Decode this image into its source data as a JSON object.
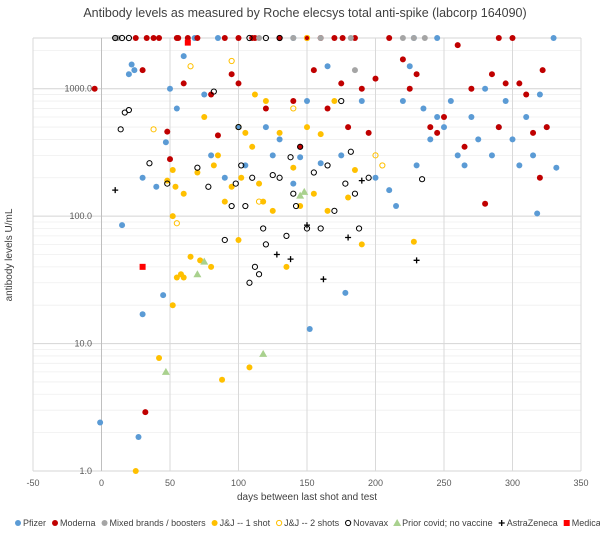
{
  "chart_data": {
    "type": "scatter",
    "title": "Antibody levels as measured by Roche elecsys total anti-spike (labcorp 164090)",
    "xlabel": "days between last shot and test",
    "ylabel": "antibody levels U/mL",
    "xlim": [
      -50,
      350
    ],
    "ylim": [
      1,
      2500
    ],
    "y_scale": "log",
    "grid": true,
    "legend_position": "bottom",
    "x_ticks": [
      "-50",
      "0",
      "50",
      "100",
      "150",
      "200",
      "250",
      "300",
      "350"
    ],
    "y_ticks": [
      {
        "label": "1.0",
        "value": 1
      },
      {
        "label": "10.0",
        "value": 10
      },
      {
        "label": "100.0",
        "value": 100
      },
      {
        "label": "1000.0",
        "value": 1000
      }
    ],
    "series": [
      {
        "name": "Pfizer",
        "marker": "circle",
        "color": "#5b9bd5",
        "points": [
          [
            -1,
            2.4
          ],
          [
            27,
            1.85
          ],
          [
            30,
            17
          ],
          [
            45,
            24
          ],
          [
            15,
            85
          ],
          [
            20,
            1300
          ],
          [
            22,
            1550
          ],
          [
            24,
            1400
          ],
          [
            30,
            200
          ],
          [
            40,
            170
          ],
          [
            47,
            380
          ],
          [
            50,
            1000
          ],
          [
            55,
            700
          ],
          [
            60,
            1800
          ],
          [
            75,
            900
          ],
          [
            80,
            300
          ],
          [
            90,
            200
          ],
          [
            100,
            500
          ],
          [
            105,
            250
          ],
          [
            120,
            500
          ],
          [
            125,
            300
          ],
          [
            130,
            400
          ],
          [
            140,
            180
          ],
          [
            145,
            290
          ],
          [
            150,
            800
          ],
          [
            152,
            13
          ],
          [
            160,
            260
          ],
          [
            165,
            1500
          ],
          [
            175,
            300
          ],
          [
            178,
            25
          ],
          [
            190,
            800
          ],
          [
            200,
            200
          ],
          [
            210,
            160
          ],
          [
            215,
            120
          ],
          [
            220,
            800
          ],
          [
            225,
            1500
          ],
          [
            230,
            250
          ],
          [
            235,
            700
          ],
          [
            240,
            400
          ],
          [
            245,
            600
          ],
          [
            250,
            500
          ],
          [
            255,
            800
          ],
          [
            260,
            300
          ],
          [
            265,
            250
          ],
          [
            270,
            600
          ],
          [
            275,
            400
          ],
          [
            280,
            1000
          ],
          [
            285,
            300
          ],
          [
            290,
            500
          ],
          [
            295,
            800
          ],
          [
            300,
            400
          ],
          [
            305,
            250
          ],
          [
            310,
            600
          ],
          [
            315,
            300
          ],
          [
            318,
            105
          ],
          [
            320,
            900
          ],
          [
            325,
            500
          ],
          [
            330,
            2500
          ],
          [
            332,
            240
          ],
          [
            68,
            2500
          ],
          [
            140,
            2500
          ],
          [
            85,
            2500
          ],
          [
            245,
            2500
          ],
          [
            228,
            2500
          ]
        ]
      },
      {
        "name": "Moderna",
        "marker": "circle",
        "color": "#c00000",
        "points": [
          [
            -5,
            1000
          ],
          [
            30,
            1400
          ],
          [
            32,
            2.9
          ],
          [
            48,
            460
          ],
          [
            50,
            280
          ],
          [
            55,
            2500
          ],
          [
            60,
            1100
          ],
          [
            70,
            2500
          ],
          [
            80,
            900
          ],
          [
            85,
            430
          ],
          [
            90,
            2500
          ],
          [
            95,
            1300
          ],
          [
            100,
            1100
          ],
          [
            110,
            2500
          ],
          [
            120,
            700
          ],
          [
            130,
            2500
          ],
          [
            140,
            800
          ],
          [
            145,
            350
          ],
          [
            150,
            2500
          ],
          [
            155,
            1400
          ],
          [
            160,
            2500
          ],
          [
            165,
            700
          ],
          [
            170,
            2500
          ],
          [
            175,
            1100
          ],
          [
            180,
            500
          ],
          [
            185,
            2500
          ],
          [
            190,
            1000
          ],
          [
            195,
            450
          ],
          [
            200,
            1200
          ],
          [
            210,
            2500
          ],
          [
            220,
            1700
          ],
          [
            225,
            1000
          ],
          [
            230,
            1300
          ],
          [
            240,
            500
          ],
          [
            245,
            450
          ],
          [
            250,
            600
          ],
          [
            260,
            2200
          ],
          [
            265,
            350
          ],
          [
            270,
            1000
          ],
          [
            280,
            125
          ],
          [
            285,
            1300
          ],
          [
            290,
            500
          ],
          [
            295,
            1100
          ],
          [
            300,
            2500
          ],
          [
            305,
            1100
          ],
          [
            310,
            900
          ],
          [
            315,
            450
          ],
          [
            320,
            200
          ],
          [
            322,
            1400
          ],
          [
            325,
            500
          ],
          [
            25,
            2500
          ],
          [
            33,
            2500
          ],
          [
            38,
            2500
          ],
          [
            42,
            2500
          ],
          [
            56,
            2500
          ],
          [
            63,
            2500
          ],
          [
            100,
            2500
          ],
          [
            112,
            2500
          ],
          [
            130,
            2500
          ],
          [
            176,
            2500
          ],
          [
            290,
            2500
          ]
        ]
      },
      {
        "name": "Mixed brands / boosters",
        "marker": "circle",
        "color": "#a5a5a5",
        "points": [
          [
            10,
            2500
          ],
          [
            12,
            2500
          ],
          [
            115,
            2500
          ],
          [
            140,
            2500
          ],
          [
            160,
            2500
          ],
          [
            182,
            2500
          ],
          [
            228,
            2500
          ],
          [
            236,
            2500
          ],
          [
            185,
            1400
          ],
          [
            220,
            2500
          ]
        ]
      },
      {
        "name": "J&J -- 1 shot",
        "marker": "circle",
        "color": "#ffc000",
        "points": [
          [
            25,
            1.0
          ],
          [
            42,
            7.7
          ],
          [
            52,
            20
          ],
          [
            55,
            33
          ],
          [
            48,
            190
          ],
          [
            52,
            100
          ],
          [
            60,
            150
          ],
          [
            70,
            220
          ],
          [
            72,
            45
          ],
          [
            75,
            600
          ],
          [
            80,
            40
          ],
          [
            82,
            250
          ],
          [
            85,
            300
          ],
          [
            88,
            5.2
          ],
          [
            90,
            130
          ],
          [
            95,
            170
          ],
          [
            100,
            65
          ],
          [
            102,
            200
          ],
          [
            105,
            450
          ],
          [
            108,
            6.5
          ],
          [
            110,
            350
          ],
          [
            112,
            900
          ],
          [
            115,
            180
          ],
          [
            118,
            130
          ],
          [
            120,
            800
          ],
          [
            125,
            110
          ],
          [
            130,
            450
          ],
          [
            135,
            40
          ],
          [
            140,
            240
          ],
          [
            145,
            120
          ],
          [
            150,
            500
          ],
          [
            155,
            150
          ],
          [
            160,
            440
          ],
          [
            165,
            110
          ],
          [
            170,
            800
          ],
          [
            180,
            140
          ],
          [
            185,
            230
          ],
          [
            190,
            60
          ],
          [
            228,
            63
          ],
          [
            65,
            48
          ],
          [
            52,
            230
          ],
          [
            60,
            33
          ],
          [
            54,
            170
          ],
          [
            58,
            35
          ]
        ]
      },
      {
        "name": "J&J -- 2 shots",
        "marker": "circle",
        "color": "#ffc000",
        "points": [
          [
            38,
            480
          ],
          [
            55,
            88
          ],
          [
            65,
            1500
          ],
          [
            95,
            1650
          ],
          [
            100,
            500
          ],
          [
            115,
            130
          ],
          [
            140,
            700
          ],
          [
            150,
            2500
          ],
          [
            200,
            300
          ],
          [
            205,
            250
          ]
        ]
      },
      {
        "name": "Novavax",
        "marker": "circle",
        "color": "#000000",
        "points": [
          [
            14,
            480
          ],
          [
            17,
            650
          ],
          [
            20,
            680
          ],
          [
            35,
            260
          ],
          [
            48,
            180
          ],
          [
            70,
            240
          ],
          [
            78,
            170
          ],
          [
            82,
            950
          ],
          [
            90,
            65
          ],
          [
            95,
            120
          ],
          [
            98,
            180
          ],
          [
            100,
            500
          ],
          [
            102,
            250
          ],
          [
            105,
            120
          ],
          [
            108,
            30
          ],
          [
            110,
            200
          ],
          [
            112,
            40
          ],
          [
            115,
            35
          ],
          [
            118,
            80
          ],
          [
            120,
            60
          ],
          [
            125,
            210
          ],
          [
            130,
            200
          ],
          [
            135,
            70
          ],
          [
            138,
            290
          ],
          [
            140,
            150
          ],
          [
            142,
            120
          ],
          [
            145,
            350
          ],
          [
            150,
            80
          ],
          [
            155,
            220
          ],
          [
            160,
            80
          ],
          [
            165,
            250
          ],
          [
            170,
            110
          ],
          [
            175,
            800
          ],
          [
            178,
            180
          ],
          [
            182,
            320
          ],
          [
            185,
            150
          ],
          [
            188,
            80
          ],
          [
            195,
            200
          ],
          [
            10,
            2500
          ],
          [
            15,
            2500
          ],
          [
            20,
            2500
          ],
          [
            108,
            2500
          ],
          [
            130,
            2500
          ],
          [
            234,
            195
          ],
          [
            120,
            2500
          ]
        ]
      },
      {
        "name": "Prior covid; no vaccine",
        "marker": "triangle",
        "color": "#a9d18e",
        "points": [
          [
            47,
            6.0
          ],
          [
            70,
            35
          ],
          [
            75,
            44
          ],
          [
            118,
            8.3
          ],
          [
            145,
            145
          ],
          [
            148,
            155
          ]
        ]
      },
      {
        "name": "AstraZeneca",
        "marker": "plus",
        "color": "#000000",
        "points": [
          [
            10,
            160
          ],
          [
            128,
            50
          ],
          [
            138,
            46
          ],
          [
            150,
            85
          ],
          [
            162,
            32
          ],
          [
            180,
            68
          ],
          [
            190,
            190
          ],
          [
            230,
            45
          ]
        ]
      },
      {
        "name": "Medicago",
        "marker": "square",
        "color": "#ff0000",
        "points": [
          [
            30,
            40
          ],
          [
            63,
            2300
          ]
        ]
      }
    ]
  }
}
